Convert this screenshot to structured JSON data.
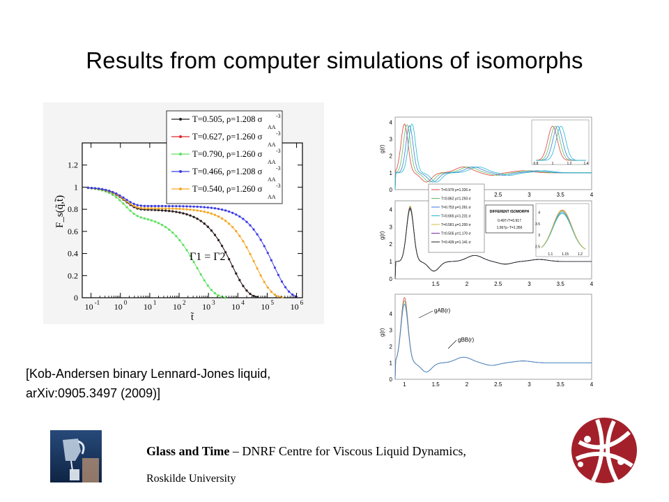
{
  "slide": {
    "title": "Results from computer simulations of isomorphs",
    "citation_line1": "[Kob-Andersen binary Lennard-Jones liquid,",
    "citation_line2": "arXiv:0905.3497 (2009)]",
    "footer_bold": "Glass and Time",
    "footer_rest": " – DNRF Centre for Viscous Liquid Dynamics,",
    "footer_line2": "Roskilde University"
  },
  "left_chart": {
    "ylabel": "F_s(q̃,t̃)",
    "xlabel": "t̃",
    "annotation": "Γ1 = Γ2",
    "x_ticks": [
      "10-1",
      "100",
      "101",
      "102",
      "103",
      "104",
      "105",
      "106"
    ],
    "y_ticks": [
      "0",
      "0.2",
      "0.4",
      "0.6",
      "0.8",
      "1",
      "1.2"
    ],
    "legend": [
      {
        "label": "T=0.505, ρ=1.208 σ",
        "color": "#222222"
      },
      {
        "label": "T=0.627,  ρ=1.260 σ",
        "color": "#e0242a"
      },
      {
        "label": "T=0.790,  ρ=1.260 σ",
        "color": "#5ee05e"
      },
      {
        "label": "T=0.466,  ρ=1.208 σ",
        "color": "#3a3ae6"
      },
      {
        "label": "T=0.540,  ρ=1.260 σ",
        "color": "#f5a623"
      }
    ]
  },
  "right_chart": {
    "panel1_xticks": [
      "2.5",
      "3",
      "3.5",
      "4"
    ],
    "panel2_xticks": [
      "1.5",
      "2",
      "2.5",
      "3",
      "3.5",
      "4"
    ],
    "panel3_xticks": [
      "1",
      "1.5",
      "2",
      "2.5",
      "3",
      "3.5",
      "4"
    ],
    "ylabel": "g(r)",
    "label_gab": "gAB(r)",
    "label_gbb": "gBB(r)",
    "legend_title": "DIFFERENT ISOMORPH",
    "inset_y": [
      "4",
      "3.5",
      "3",
      "2.5"
    ],
    "inset_x": [
      "1.1",
      "1.15",
      "1.2"
    ],
    "inset1_x": [
      "0.8",
      "1",
      "1.2",
      "1.4"
    ],
    "legend_rows": [
      "T=0.979 ρ=1.326 σ",
      "T=0.862 ρ=1.293 σ",
      "T=0.753 ρ=1.261 σ",
      "T=0.665 ρ=1.231 σ",
      "T=0.581 ρ=1.200 σ",
      "T=0.505 ρ=1.170 σ",
      "T=0.439 ρ=1.141 σ"
    ]
  },
  "colors": {
    "logo_red": "#a3202a"
  }
}
